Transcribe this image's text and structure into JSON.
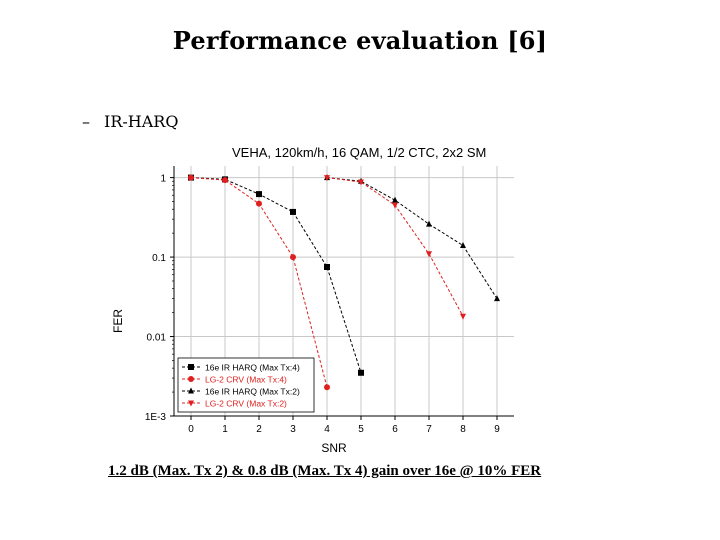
{
  "slide": {
    "title": "Performance evaluation [6]",
    "bullet_marker": "–",
    "bullet_text": "IR-HARQ",
    "footer_note": "1.2 dB (Max. Tx 2) & 0.8 dB (Max. Tx 4) gain over 16e @ 10% FER"
  },
  "chart_data": {
    "type": "line",
    "title": "VEHA, 120km/h, 16 QAM, 1/2 CTC, 2x2 SM",
    "xlabel": "SNR",
    "ylabel": "FER",
    "y_scale": "log",
    "xlim": [
      -0.5,
      9.5
    ],
    "ylim": [
      0.001,
      1.4
    ],
    "x_ticks": [
      "0",
      "1",
      "2",
      "3",
      "4",
      "5",
      "6",
      "7",
      "8",
      "9"
    ],
    "y_ticks": [
      {
        "value": 1,
        "label": "1"
      },
      {
        "value": 0.1,
        "label": "0.1"
      },
      {
        "value": 0.01,
        "label": "0.01"
      },
      {
        "value": 0.001,
        "label": "1E-3"
      }
    ],
    "grid": true,
    "legend_position": "bottom-left",
    "series": [
      {
        "name": "16e IR HARQ (Max Tx:4)",
        "color": "#000000",
        "marker": "square",
        "x": [
          0,
          1,
          2,
          3,
          4,
          5
        ],
        "y": [
          1.0,
          0.95,
          0.62,
          0.37,
          0.075,
          0.0035
        ]
      },
      {
        "name": "LG-2 CRV (Max Tx:4)",
        "color": "#e02020",
        "marker": "circle",
        "x": [
          0,
          1,
          2,
          3,
          4
        ],
        "y": [
          1.0,
          0.93,
          0.47,
          0.1,
          0.0023
        ]
      },
      {
        "name": "16e IR HARQ (Max Tx:2)",
        "color": "#000000",
        "marker": "triangle-up",
        "x": [
          4,
          5,
          6,
          7,
          8,
          9
        ],
        "y": [
          1.0,
          0.9,
          0.52,
          0.26,
          0.14,
          0.03
        ]
      },
      {
        "name": "LG-2 CRV (Max Tx:2)",
        "color": "#e02020",
        "marker": "triangle-down",
        "x": [
          4,
          5,
          6,
          7,
          8
        ],
        "y": [
          1.0,
          0.88,
          0.45,
          0.11,
          0.018
        ]
      }
    ]
  }
}
